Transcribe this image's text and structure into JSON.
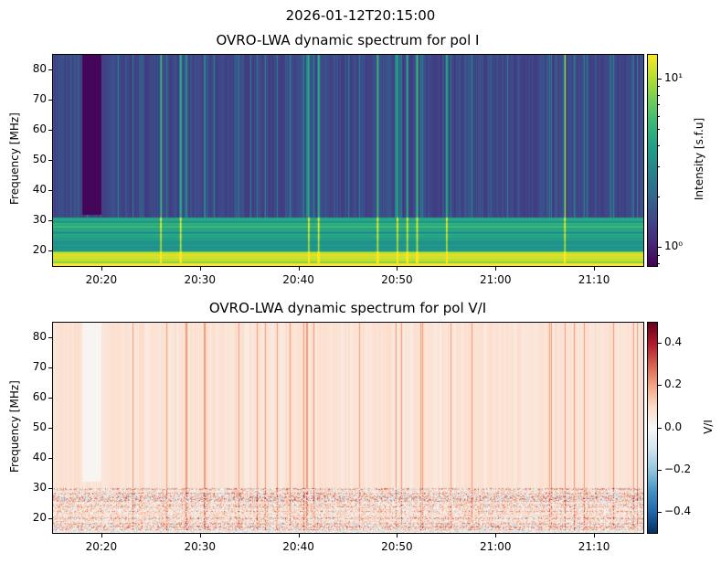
{
  "suptitle": "2026-01-12T20:15:00",
  "chart_data": [
    {
      "type": "heatmap",
      "title": "OVRO-LWA dynamic spectrum for pol I",
      "xlabel": "",
      "ylabel": "Frequency [MHz]",
      "xlim": [
        "20:15",
        "21:15"
      ],
      "ylim": [
        15,
        85
      ],
      "x_ticks": [
        "20:20",
        "20:30",
        "20:40",
        "20:50",
        "21:00",
        "21:10"
      ],
      "y_ticks": [
        20,
        30,
        40,
        50,
        60,
        70,
        80
      ],
      "colormap": "viridis",
      "color_scale": "log",
      "clim": [
        0.77,
        14
      ],
      "colorbar_label": "Intensity [s.f.u]",
      "colorbar_ticks": [
        {
          "value": 1,
          "label": "10⁰"
        },
        {
          "value": 10,
          "label": "10¹"
        }
      ],
      "features": {
        "background_intensity": 1.5,
        "low_band_intensity": 4,
        "lowest_band_intensity": 12,
        "low_band_upper_mhz": 30,
        "data_gap": [
          "20:18",
          "20:20"
        ],
        "bright_bursts": [
          "20:26",
          "20:28",
          "20:41",
          "20:42",
          "20:48",
          "20:50",
          "20:51",
          "20:52",
          "20:55",
          "21:07"
        ]
      }
    },
    {
      "type": "heatmap",
      "title": "OVRO-LWA dynamic spectrum for pol V/I",
      "xlabel": "",
      "ylabel": "Frequency [MHz]",
      "xlim": [
        "20:15",
        "21:15"
      ],
      "ylim": [
        15,
        85
      ],
      "x_ticks": [
        "20:20",
        "20:30",
        "20:40",
        "20:50",
        "21:00",
        "21:10"
      ],
      "y_ticks": [
        20,
        30,
        40,
        50,
        60,
        70,
        80
      ],
      "colormap": "RdBu_r",
      "color_scale": "linear",
      "clim": [
        -0.5,
        0.5
      ],
      "colorbar_label": "V/I",
      "colorbar_ticks": [
        {
          "value": 0.4,
          "label": "0.4"
        },
        {
          "value": 0.2,
          "label": "0.2"
        },
        {
          "value": 0.0,
          "label": "0.0"
        },
        {
          "value": -0.2,
          "label": "−0.2"
        },
        {
          "value": -0.4,
          "label": "−0.4"
        }
      ],
      "features": {
        "background_value": 0.07,
        "data_gap": [
          "20:18",
          "20:20"
        ],
        "noisy_band_below_mhz": 30
      }
    }
  ]
}
